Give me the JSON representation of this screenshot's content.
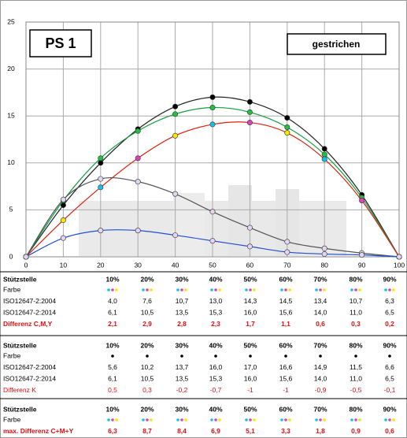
{
  "chart_data": {
    "type": "line",
    "title": "PS 1",
    "annotation": "gestrichen",
    "x": [
      0,
      10,
      20,
      30,
      40,
      50,
      60,
      70,
      80,
      90,
      100
    ],
    "xlim": [
      0,
      100
    ],
    "xticks": [
      0,
      10,
      20,
      30,
      40,
      50,
      60,
      70,
      80,
      90,
      100
    ],
    "ylim": [
      0,
      25
    ],
    "yticks": [
      0,
      5,
      10,
      15,
      20,
      25
    ],
    "grid": true,
    "series": [
      {
        "color": "#222222",
        "values": [
          0,
          5.5,
          10.0,
          13.6,
          16.0,
          17.0,
          16.5,
          14.8,
          11.5,
          6.6,
          0
        ],
        "marker_colors": [
          "#e4d4f4",
          "#000000",
          "#000000",
          "#000000",
          "#000000",
          "#000000",
          "#000000",
          "#000000",
          "#000000",
          "#000000",
          "#e4d4f4"
        ]
      },
      {
        "color": "#10a040",
        "values": [
          0,
          6.0,
          10.5,
          13.4,
          15.2,
          15.9,
          15.4,
          13.8,
          10.9,
          6.3,
          0
        ],
        "marker_colors": [
          "#e4d4f4",
          "#20c040",
          "#20c040",
          "#20c040",
          "#20c040",
          "#20c040",
          "#20c040",
          "#20c040",
          "#20c040",
          "#20c040",
          "#e4d4f4"
        ]
      },
      {
        "color": "#e02010",
        "values": [
          0,
          3.9,
          7.4,
          10.5,
          12.9,
          14.1,
          14.3,
          13.2,
          10.4,
          6.0,
          0
        ],
        "marker_colors": [
          "#e4d4f4",
          "#f8e800",
          "#10c0f0",
          "#e040c0",
          "#f8e800",
          "#10c0f0",
          "#e040c0",
          "#f8e800",
          "#10c0f0",
          "#e040c0",
          "#e4d4f4"
        ]
      },
      {
        "color": "#555555",
        "values": [
          0,
          6.1,
          8.3,
          8.0,
          6.7,
          4.8,
          3.1,
          1.6,
          0.9,
          0.4,
          0
        ],
        "marker_colors": [
          "#e4d4f4",
          "#e4d4f4",
          "#e4d4f4",
          "#e4d4f4",
          "#e4d4f4",
          "#e4d4f4",
          "#e4d4f4",
          "#e4d4f4",
          "#e4d4f4",
          "#e4d4f4",
          "#e4d4f4"
        ]
      },
      {
        "color": "#2050d0",
        "values": [
          0,
          2.0,
          2.8,
          2.8,
          2.3,
          1.7,
          1.1,
          0.5,
          0.3,
          0.2,
          0
        ],
        "marker_colors": [
          "#e4d4f4",
          "#e4d4f4",
          "#e4d4f4",
          "#e4d4f4",
          "#e4d4f4",
          "#e4d4f4",
          "#e4d4f4",
          "#e4d4f4",
          "#e4d4f4",
          "#e4d4f4",
          "#e4d4f4"
        ]
      }
    ]
  },
  "tables": [
    {
      "header": [
        "Stützstelle",
        "10%",
        "20%",
        "30%",
        "40%",
        "50%",
        "60%",
        "70%",
        "80%",
        "90%"
      ],
      "rows": [
        {
          "label": "Farbe"
        },
        {
          "label": "ISO12647-2:2004",
          "values": [
            "4,0",
            "7,6",
            "10,7",
            "13,0",
            "14,3",
            "14,5",
            "13,4",
            "10,7",
            "6,3"
          ]
        },
        {
          "label": "ISO12647-2:2014",
          "values": [
            "6,1",
            "10,5",
            "13,5",
            "15,3",
            "16,0",
            "15,6",
            "14,0",
            "11,0",
            "6,5"
          ]
        },
        {
          "label": "Differenz C,M,Y",
          "values": [
            "2,1",
            "2,9",
            "2,8",
            "2,3",
            "1,7",
            "1,1",
            "0,6",
            "0,3",
            "0,2"
          ]
        }
      ]
    },
    {
      "header": [
        "Stützstelle",
        "10%",
        "20%",
        "30%",
        "40%",
        "50%",
        "60%",
        "70%",
        "80%",
        "90%"
      ],
      "rows": [
        {
          "label": "Farbe"
        },
        {
          "label": "ISO12647-2:2004",
          "values": [
            "5,6",
            "10,2",
            "13,7",
            "16,0",
            "17,0",
            "16,6",
            "14,9",
            "11,5",
            "6,6"
          ]
        },
        {
          "label": "ISO12647-2:2014",
          "values": [
            "6,1",
            "10,5",
            "13,5",
            "15,3",
            "16,0",
            "15,6",
            "14,0",
            "11,0",
            "6,5"
          ]
        },
        {
          "label": "Differenz K",
          "values": [
            "0,5",
            "0,3",
            "-0,2",
            "-0,7",
            "-1",
            "-1",
            "-0,9",
            "-0,5",
            "-0,1"
          ]
        }
      ]
    },
    {
      "header": [
        "Stützstelle",
        "10%",
        "20%",
        "30%",
        "40%",
        "50%",
        "60%",
        "70%",
        "80%",
        "90%"
      ],
      "rows": [
        {
          "label": "Farbe"
        },
        {
          "label": "max. Differenz C+M+Y",
          "values": [
            "6,3",
            "8,7",
            "8,4",
            "6,9",
            "5,1",
            "3,3",
            "1,8",
            "0,9",
            "0,6"
          ]
        }
      ]
    }
  ]
}
